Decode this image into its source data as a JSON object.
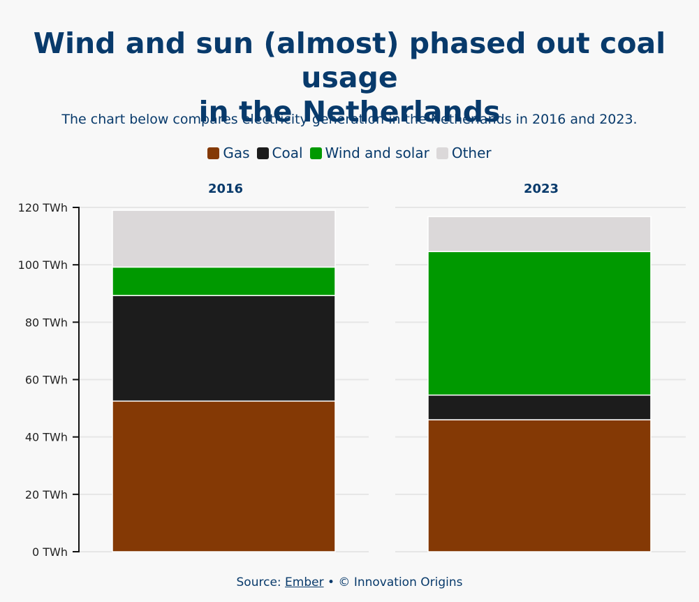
{
  "title_line1": "Wind and sun (almost) phased out coal usage",
  "title_line2": "in the Netherlands",
  "subtitle": "The chart below compares electricity generation in the Netherlands in 2016 and 2023.",
  "source": {
    "prefix": "Source: ",
    "link": "Ember",
    "suffix": " • © Innovation Origins"
  },
  "legend": [
    {
      "label": "Gas",
      "color": "#843905"
    },
    {
      "label": "Coal",
      "color": "#1c1c1c"
    },
    {
      "label": "Wind and solar",
      "color": "#009900"
    },
    {
      "label": "Other",
      "color": "#dbd8d9"
    }
  ],
  "chart_data": {
    "type": "bar",
    "stacked": true,
    "unit": "TWh",
    "ylim": [
      0,
      120
    ],
    "yticks": [
      "0 TWh",
      "20 TWh",
      "40 TWh",
      "60 TWh",
      "80 TWh",
      "100 TWh",
      "120 TWh"
    ],
    "ytick_values": [
      0,
      20,
      40,
      60,
      80,
      100,
      120
    ],
    "categories": [
      "2016",
      "2023"
    ],
    "series": [
      {
        "name": "Gas",
        "color": "#843905",
        "values": [
          52.5,
          46.0
        ]
      },
      {
        "name": "Coal",
        "color": "#1c1c1c",
        "values": [
          36.8,
          8.6
        ]
      },
      {
        "name": "Wind and solar",
        "color": "#009900",
        "values": [
          9.9,
          50.0
        ]
      },
      {
        "name": "Other",
        "color": "#dbd8d9",
        "values": [
          19.8,
          12.2
        ]
      }
    ],
    "legend_position": "top-center"
  }
}
